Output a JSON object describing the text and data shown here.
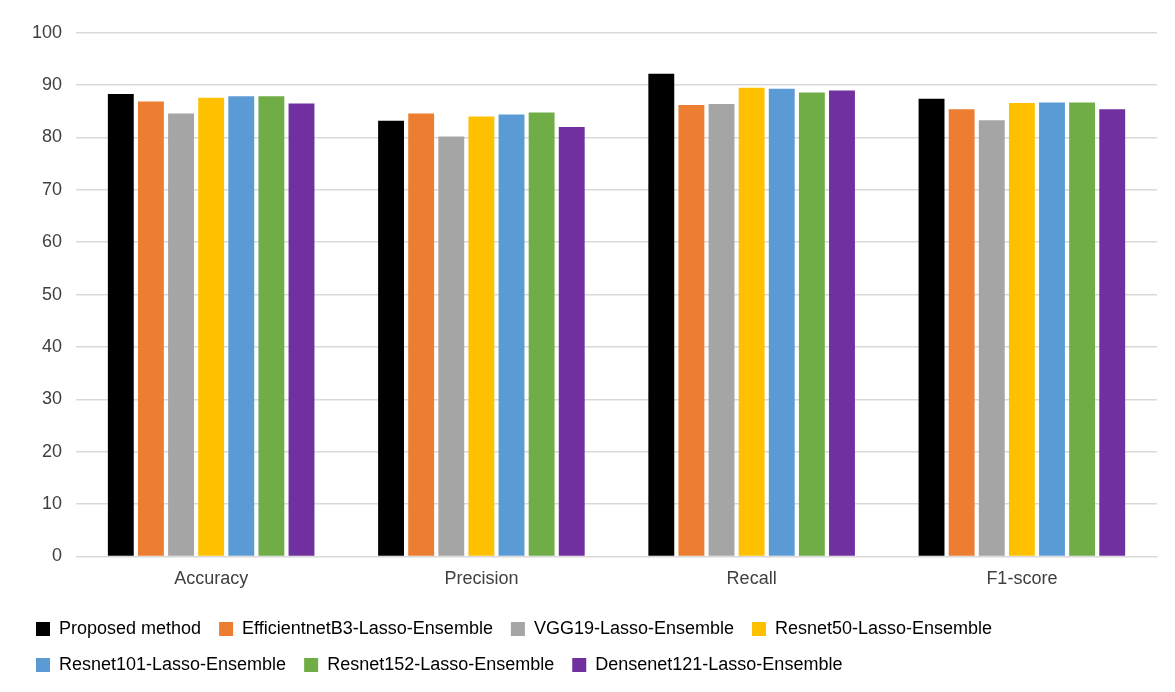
{
  "chart_data": {
    "type": "bar",
    "categories": [
      "Accuracy",
      "Precision",
      "Recall",
      "F1-score"
    ],
    "series": [
      {
        "name": "Proposed method",
        "color": "#000000",
        "values": [
          88.3,
          83.2,
          92.2,
          87.4
        ]
      },
      {
        "name": "EfficientnetB3-Lasso-Ensemble",
        "color": "#ed7d31",
        "values": [
          86.9,
          84.6,
          86.2,
          85.4
        ]
      },
      {
        "name": "VGG19-Lasso-Ensemble",
        "color": "#a5a5a5",
        "values": [
          84.6,
          80.2,
          86.4,
          83.3
        ]
      },
      {
        "name": "Resnet50-Lasso-Ensemble",
        "color": "#ffc000",
        "values": [
          87.6,
          84.0,
          89.5,
          86.6
        ]
      },
      {
        "name": "Resnet101-Lasso-Ensemble",
        "color": "#5b9bd5",
        "values": [
          87.9,
          84.4,
          89.3,
          86.7
        ]
      },
      {
        "name": "Resnet152-Lasso-Ensemble",
        "color": "#70ad47",
        "values": [
          87.9,
          84.8,
          88.6,
          86.7
        ]
      },
      {
        "name": "Densenet121-Lasso-Ensemble",
        "color": "#7030a0",
        "values": [
          86.5,
          82.0,
          89.0,
          85.4
        ]
      }
    ],
    "ylim": [
      0,
      100
    ],
    "yticks": [
      0,
      10,
      20,
      30,
      40,
      50,
      60,
      70,
      80,
      90,
      100
    ],
    "grid": "y",
    "legend": "bottom"
  }
}
